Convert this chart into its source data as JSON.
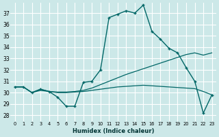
{
  "xlabel": "Humidex (Indice chaleur)",
  "bg_color": "#cce8e8",
  "grid_color": "#ffffff",
  "line_color": "#006666",
  "xlim": [
    -0.5,
    23.5
  ],
  "ylim": [
    27.5,
    37.9
  ],
  "yticks": [
    28,
    29,
    30,
    31,
    32,
    33,
    34,
    35,
    36,
    37
  ],
  "xticks": [
    0,
    1,
    2,
    3,
    4,
    5,
    6,
    7,
    8,
    9,
    10,
    11,
    12,
    13,
    14,
    15,
    16,
    17,
    18,
    19,
    20,
    21,
    22,
    23
  ],
  "main_series": [
    30.5,
    30.5,
    30.0,
    30.3,
    30.1,
    29.6,
    28.8,
    28.8,
    30.9,
    31.0,
    32.0,
    36.6,
    36.9,
    37.2,
    37.0,
    37.7,
    35.4,
    34.7,
    33.9,
    33.5,
    32.2,
    31.0,
    28.2,
    29.8
  ],
  "line_rise": [
    30.5,
    30.5,
    30.0,
    30.3,
    30.1,
    30.05,
    30.05,
    30.1,
    30.2,
    30.4,
    30.7,
    31.0,
    31.3,
    31.6,
    31.85,
    32.1,
    32.35,
    32.6,
    32.85,
    33.1,
    33.35,
    33.5,
    33.3,
    33.5
  ],
  "line_flat": [
    30.5,
    30.5,
    30.0,
    30.2,
    30.1,
    30.0,
    30.0,
    30.05,
    30.1,
    30.2,
    30.3,
    30.4,
    30.5,
    30.55,
    30.6,
    30.65,
    30.6,
    30.55,
    30.5,
    30.45,
    30.4,
    30.35,
    30.1,
    29.8
  ]
}
